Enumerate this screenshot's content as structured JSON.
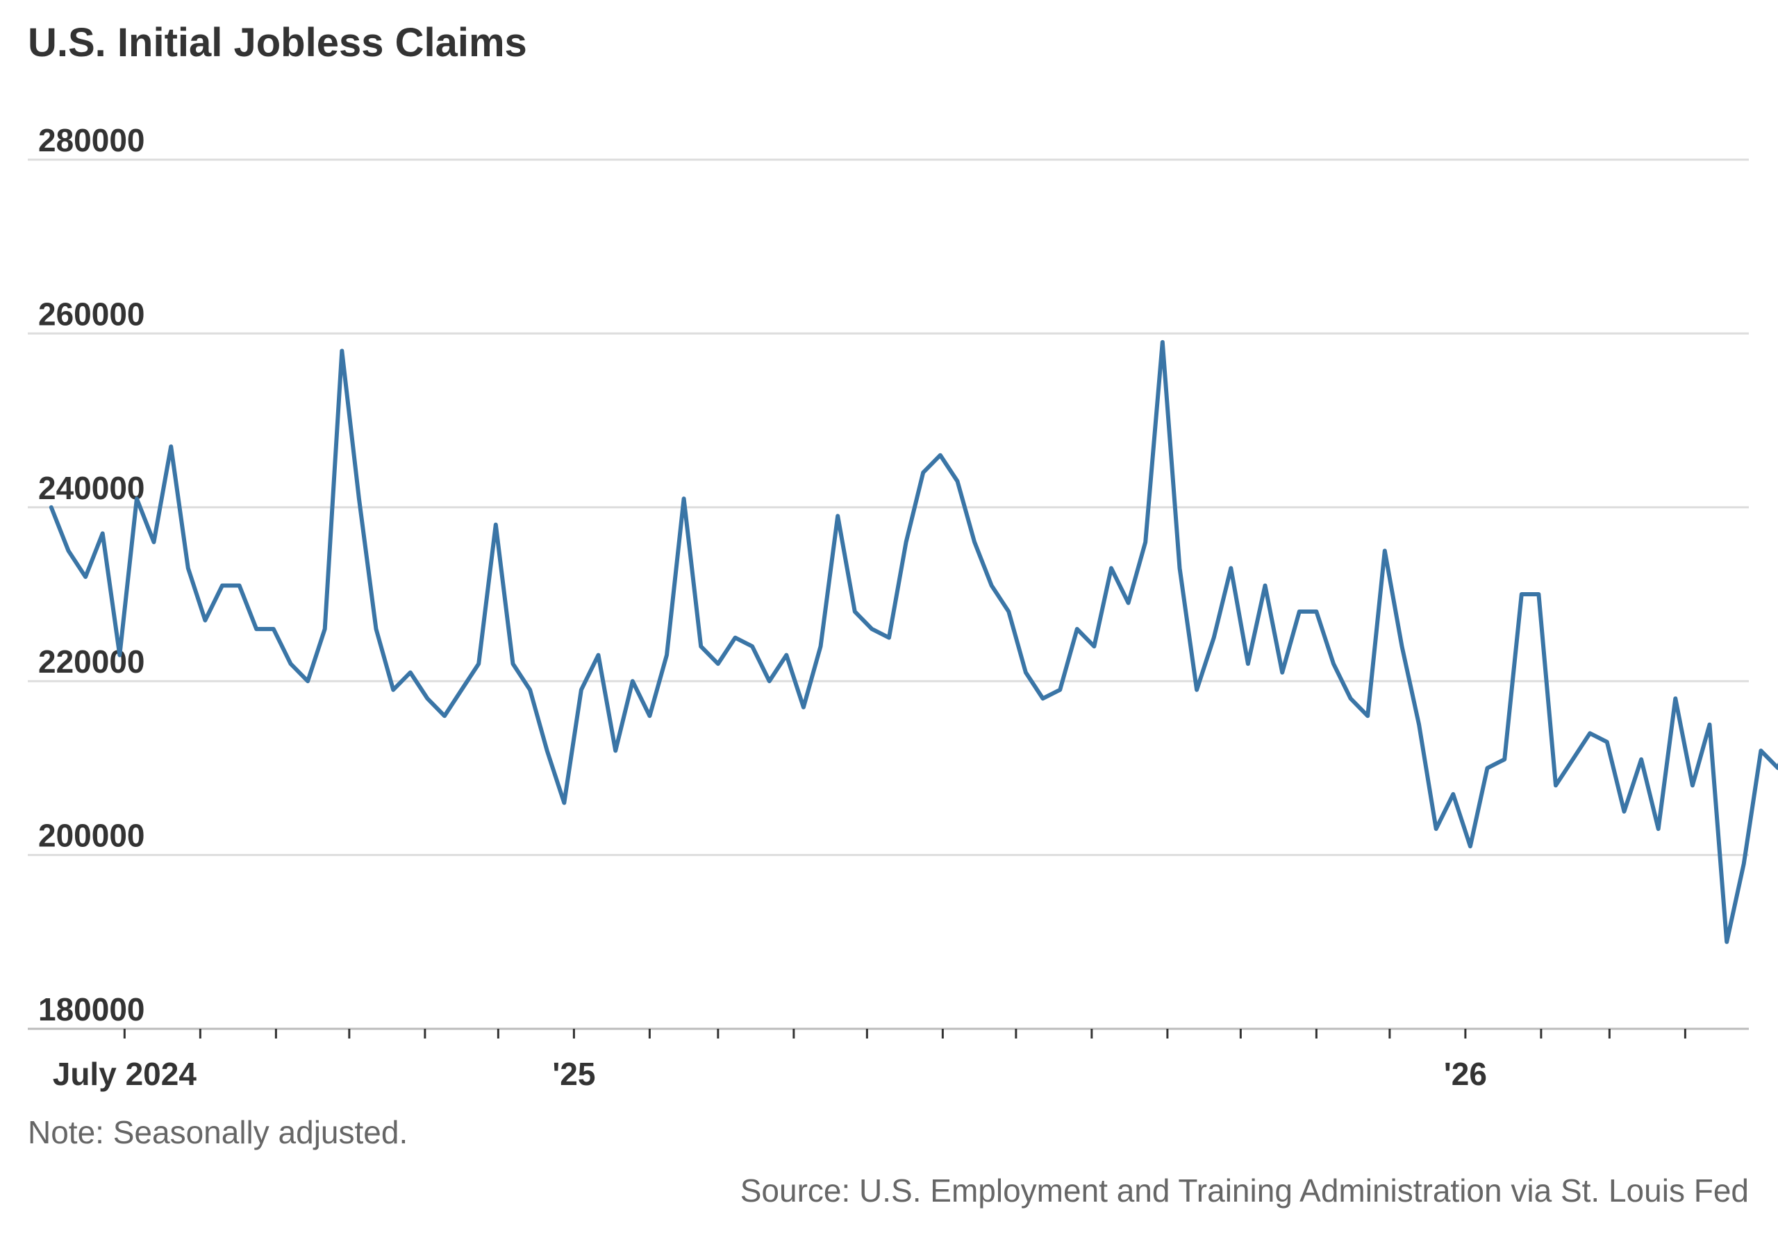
{
  "chart_data": {
    "type": "line",
    "title": "U.S. Initial Jobless Claims",
    "note": "Note: Seasonally adjusted.",
    "source": "Source: U.S. Employment and Training Administration via St. Louis Fed",
    "ylim": [
      180000,
      280000
    ],
    "yticks": [
      180000,
      200000,
      220000,
      240000,
      260000,
      280000
    ],
    "grid": true,
    "line_color": "#3a75a6",
    "xlim": [
      "2024-05-11",
      "2026-05-09"
    ],
    "x_labels": [
      {
        "date": "2024-07-01",
        "label": "July 2024"
      },
      {
        "date": "2025-01-01",
        "label": "'25"
      },
      {
        "date": "2026-01-01",
        "label": "'26"
      }
    ],
    "x_minor_ticks": [
      "2024-07-01",
      "2024-08-01",
      "2024-09-01",
      "2024-10-01",
      "2024-11-01",
      "2024-12-01",
      "2025-01-01",
      "2025-02-01",
      "2025-03-01",
      "2025-04-01",
      "2025-05-01",
      "2025-06-01",
      "2025-07-01",
      "2025-08-01",
      "2025-09-01",
      "2025-10-01",
      "2025-11-01",
      "2025-12-01",
      "2026-01-01",
      "2026-02-01",
      "2026-03-01",
      "2026-04-01"
    ],
    "x_start": "2024-06-01",
    "x_step_days": 7,
    "values": [
      240000,
      235000,
      232000,
      237000,
      223000,
      241000,
      236000,
      247000,
      233000,
      227000,
      231000,
      231000,
      226000,
      226000,
      222000,
      220000,
      226000,
      258000,
      241000,
      226000,
      219000,
      221000,
      218000,
      216000,
      219000,
      222000,
      238000,
      222000,
      219000,
      212000,
      206000,
      219000,
      223000,
      212000,
      220000,
      216000,
      223000,
      241000,
      224000,
      222000,
      225000,
      224000,
      220000,
      223000,
      217000,
      224000,
      239000,
      228000,
      226000,
      225000,
      236000,
      244000,
      246000,
      243000,
      236000,
      231000,
      228000,
      221000,
      218000,
      219000,
      226000,
      224000,
      233000,
      229000,
      236000,
      259000,
      233000,
      219000,
      225000,
      233000,
      222000,
      231000,
      221000,
      228000,
      228000,
      222000,
      218000,
      216000,
      235000,
      224000,
      215000,
      203000,
      207000,
      201000,
      210000,
      211000,
      230000,
      230000,
      208000,
      211000,
      214000,
      213000,
      205000,
      211000,
      203000,
      218000,
      208000,
      215000,
      190000,
      199000,
      212000,
      210000,
      215000
    ]
  }
}
